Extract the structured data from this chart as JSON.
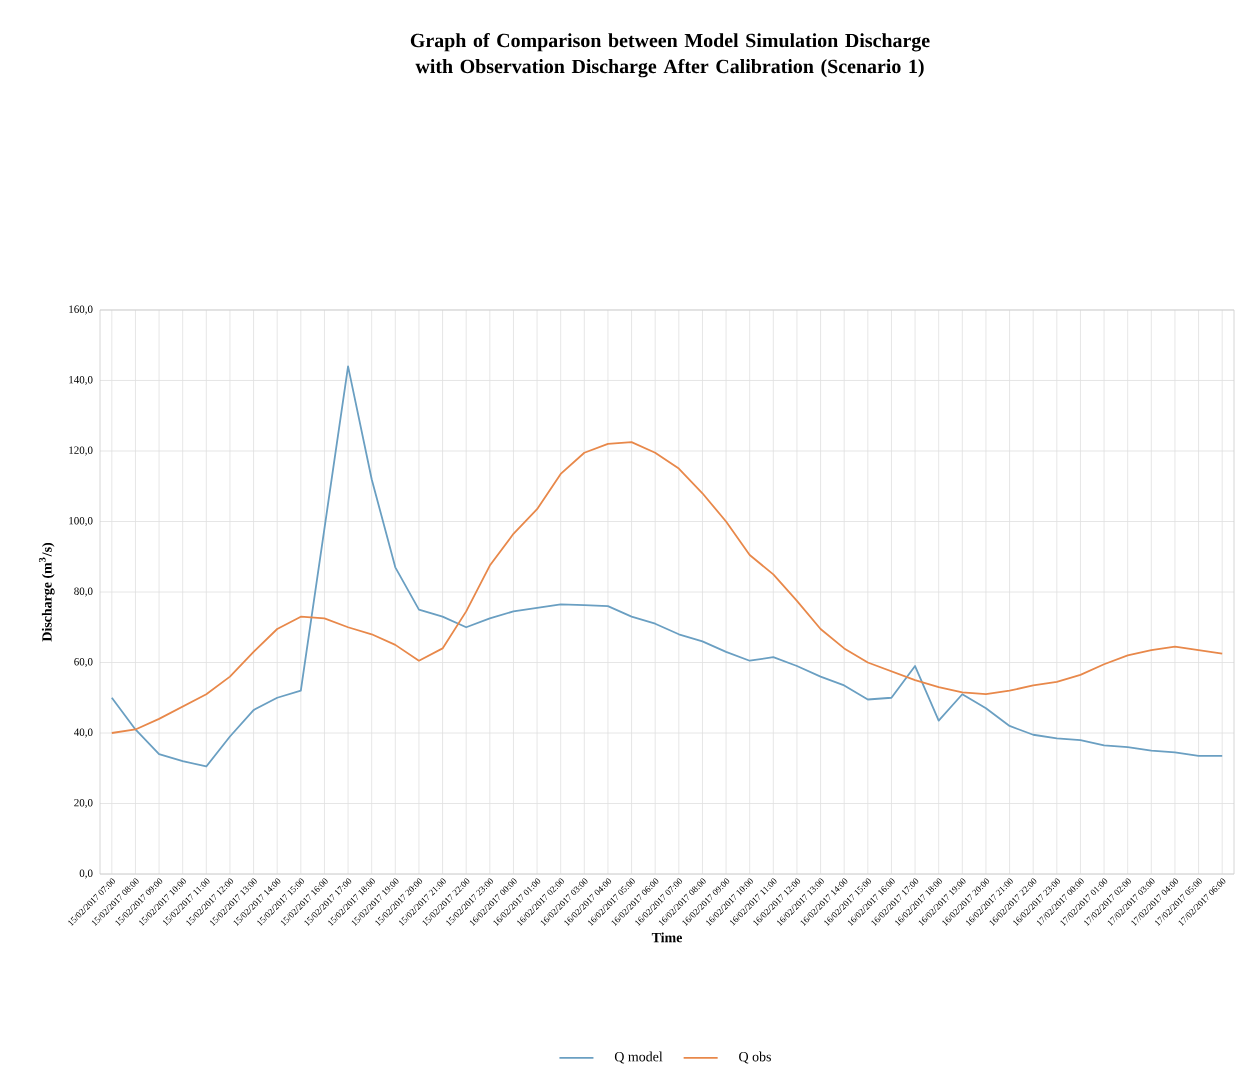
{
  "chart_data": {
    "type": "line",
    "title": "Graph of Comparison between Model Simulation  Discharge with Observation Discharge After Calibration (Scenario 1)",
    "xlabel": "Time",
    "ylabel": "Discharge (m$^{3}$/s)",
    "categories": [
      "15/02/2017 07:00",
      "15/02/2017 08:00",
      "15/02/2017 09:00",
      "15/02/2017 10:00",
      "15/02/2017 11:00",
      "15/02/2017 12:00",
      "15/02/2017 13:00",
      "15/02/2017 14:00",
      "15/02/2017 15:00",
      "15/02/2017 16:00",
      "15/02/2017 17:00",
      "15/02/2017 18:00",
      "15/02/2017 19:00",
      "15/02/2017 20:00",
      "15/02/2017 21:00",
      "15/02/2017 22:00",
      "15/02/2017 23:00",
      "16/02/2017 00:00",
      "16/02/2017 01:00",
      "16/02/2017 02:00",
      "16/02/2017 03:00",
      "16/02/2017 04:00",
      "16/02/2017 05:00",
      "16/02/2017 06:00",
      "16/02/2017 07:00",
      "16/02/2017 08:00",
      "16/02/2017 09:00",
      "16/02/2017 10:00",
      "16/02/2017 11:00",
      "16/02/2017 12:00",
      "16/02/2017 13:00",
      "16/02/2017 14:00",
      "16/02/2017 15:00",
      "16/02/2017 16:00",
      "16/02/2017 17:00",
      "16/02/2017 18:00",
      "16/02/2017 19:00",
      "16/02/2017 20:00",
      "16/02/2017 21:00",
      "16/02/2017 22:00",
      "16/02/2017 23:00",
      "17/02/2017 00:00",
      "17/02/2017 01:00",
      "17/02/2017 02:00",
      "17/02/2017 03:00",
      "17/02/2017 04:00",
      "17/02/2017 05:00",
      "17/02/2017 06:00"
    ],
    "series": [
      {
        "name": "Q model",
        "color": "#6a9fc2",
        "values": [
          50,
          41,
          34,
          32,
          30.5,
          39,
          46.5,
          50,
          52,
          98,
          144,
          112,
          87,
          75,
          73,
          70,
          72.5,
          74.5,
          75.5,
          76.5,
          76.3,
          76,
          73,
          71,
          68,
          66,
          63,
          60.5,
          61.5,
          59,
          56,
          53.5,
          49.5,
          50,
          59,
          43.5,
          51,
          47,
          42,
          39.5,
          38.5,
          38,
          36.5,
          36,
          35,
          34.5,
          33.5,
          33.5
        ]
      },
      {
        "name": "Q obs",
        "color": "#e8884a",
        "values": [
          40,
          41,
          44,
          47.5,
          51,
          56,
          63,
          69.5,
          73,
          72.5,
          70,
          68,
          65,
          60.5,
          64,
          74.5,
          87.5,
          96.5,
          103.5,
          113.5,
          119.5,
          122,
          122.5,
          119.5,
          115,
          108,
          100,
          90.5,
          85,
          77.5,
          69.5,
          64,
          60,
          57.5,
          55,
          53,
          51.5,
          51,
          52,
          53.5,
          54.5,
          56.5,
          59.5,
          62,
          63.5,
          64.5,
          63.5,
          62.5
        ]
      }
    ],
    "ylim": [
      0,
      160
    ],
    "yticks": [
      {
        "value": 0,
        "label": "0,0"
      },
      {
        "value": 20,
        "label": "20,0"
      },
      {
        "value": 40,
        "label": "40,0"
      },
      {
        "value": 60,
        "label": "60,0"
      },
      {
        "value": 80,
        "label": "80,0"
      },
      {
        "value": 100,
        "label": "100,0"
      },
      {
        "value": 120,
        "label": "120,0"
      },
      {
        "value": 140,
        "label": "140,0"
      },
      {
        "value": 160,
        "label": "160,0"
      }
    ],
    "grid": true,
    "legend": "bottom",
    "marker": "none",
    "line_style": "solid"
  }
}
